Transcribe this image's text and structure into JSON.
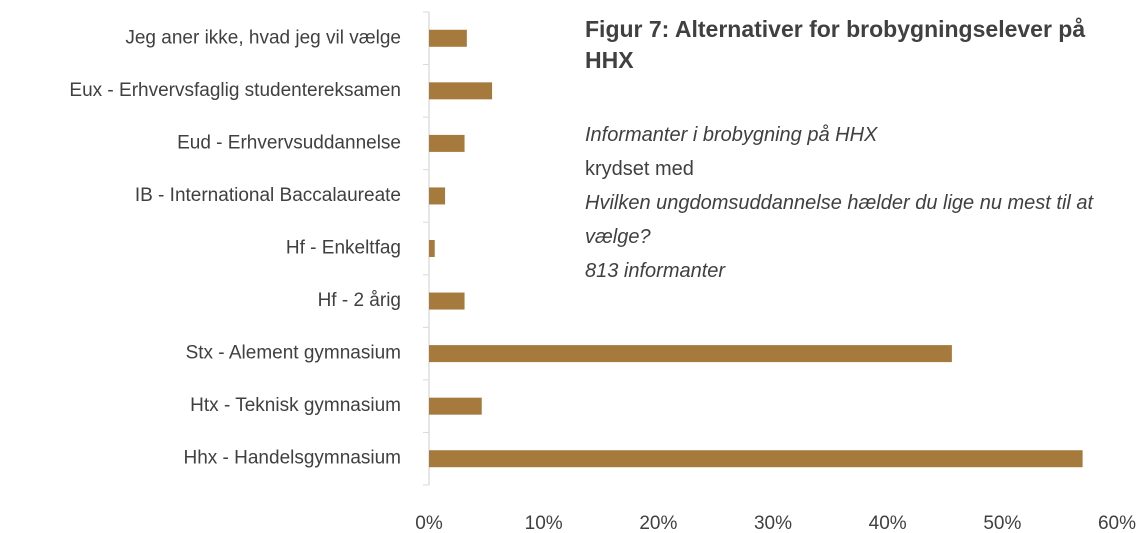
{
  "chart_data": {
    "type": "bar",
    "orientation": "horizontal",
    "title": "Figur 7: Alternativer for brobygningselever på HHX",
    "annotations": [
      {
        "text": "Informanter i brobygning på HHX",
        "italic": true
      },
      {
        "text": "krydset med",
        "italic": false
      },
      {
        "text": "Hvilken ungdomsuddannelse hælder du lige nu mest til at vælge?",
        "italic": true
      },
      {
        "text": "813 informanter",
        "italic": true
      }
    ],
    "categories": [
      "Jeg aner ikke, hvad jeg vil vælge",
      "Eux - Erhvervsfaglig studentereksamen",
      "Eud - Erhvervsuddannelse",
      "IB - International Baccalaureate",
      "Hf - Enkeltfag",
      "Hf - 2 årig",
      "Stx - Alement gymnasium",
      "Htx - Teknisk gymnasium",
      "Hhx - Handelsgymnasium"
    ],
    "values": [
      3.3,
      5.5,
      3.1,
      1.4,
      0.5,
      3.1,
      45.6,
      4.6,
      57.0
    ],
    "color": "#a57a3c",
    "xlim": [
      0,
      60
    ],
    "xticks": [
      {
        "value": 0,
        "label": "0%"
      },
      {
        "value": 10,
        "label": "10%"
      },
      {
        "value": 20,
        "label": "20%"
      },
      {
        "value": 30,
        "label": "30%"
      },
      {
        "value": 40,
        "label": "40%"
      },
      {
        "value": 50,
        "label": "50%"
      },
      {
        "value": 60,
        "label": "60%"
      }
    ],
    "grid": false
  }
}
